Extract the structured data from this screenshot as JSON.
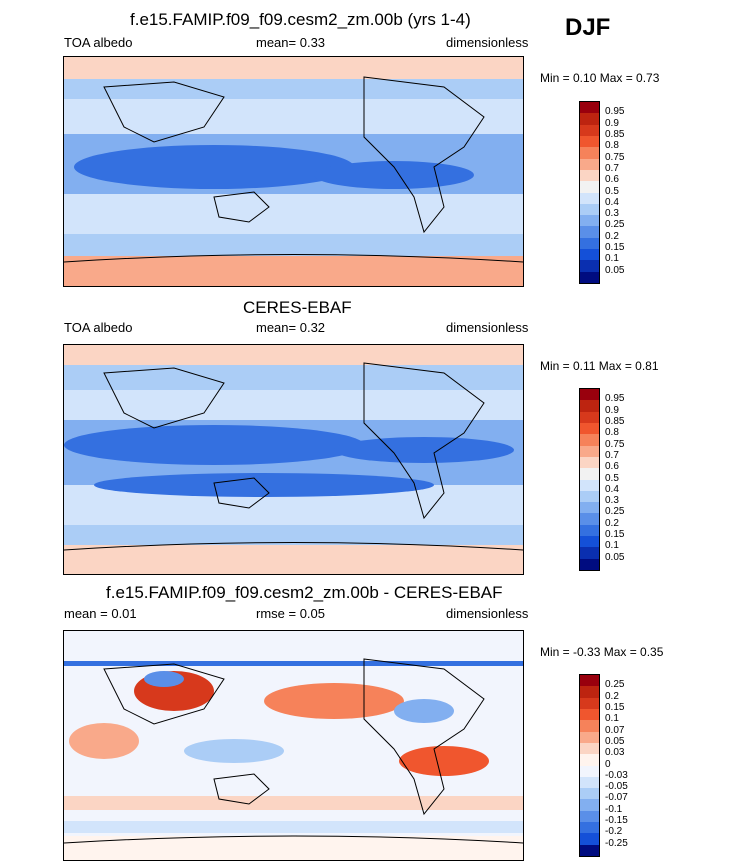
{
  "season": "DJF",
  "panels": [
    {
      "title": "f.e15.FAMIP.f09_f09.cesm2_zm.00b (yrs 1-4)",
      "left_label": "TOA albedo",
      "center_label": "mean=   0.33",
      "right_label": "dimensionless",
      "minmax": "Min =   0.10 Max =   0.73",
      "colorbar_labels": [
        "0.95",
        "0.9",
        "0.85",
        "0.8",
        "0.75",
        "0.7",
        "0.6",
        "0.5",
        "0.4",
        "0.3",
        "0.25",
        "0.2",
        "0.15",
        "0.1",
        "0.05"
      ]
    },
    {
      "title": "CERES-EBAF",
      "left_label": "TOA albedo",
      "center_label": "mean=   0.32",
      "right_label": "dimensionless",
      "minmax": "Min =   0.11 Max =   0.81",
      "colorbar_labels": [
        "0.95",
        "0.9",
        "0.85",
        "0.8",
        "0.75",
        "0.7",
        "0.6",
        "0.5",
        "0.4",
        "0.3",
        "0.25",
        "0.2",
        "0.15",
        "0.1",
        "0.05"
      ]
    },
    {
      "title": "f.e15.FAMIP.f09_f09.cesm2_zm.00b - CERES-EBAF",
      "left_label": "mean =   0.01",
      "center_label": "rmse =   0.05",
      "right_label": "dimensionless",
      "minmax": "Min =  -0.33 Max =   0.35",
      "colorbar_labels": [
        "0.25",
        "0.2",
        "0.15",
        "0.1",
        "0.07",
        "0.05",
        "0.03",
        "0",
        "-0.03",
        "-0.05",
        "-0.07",
        "-0.1",
        "-0.15",
        "-0.2",
        "-0.25"
      ]
    }
  ],
  "colors": {
    "abs_scale": [
      "#99000d",
      "#bd2410",
      "#d7391c",
      "#f0562e",
      "#f6825a",
      "#f9a98a",
      "#fbd5c4",
      "#f2f2f2",
      "#d2e4fb",
      "#abcdf6",
      "#82aff0",
      "#5a8fe8",
      "#3470e0",
      "#1450d8",
      "#0a2fb0",
      "#000c80"
    ],
    "diff_scale": [
      "#99000d",
      "#bd2410",
      "#d7391c",
      "#f0562e",
      "#f6825a",
      "#f9a98a",
      "#fbd5c4",
      "#fff4ee",
      "#f2f5fd",
      "#d2e4fb",
      "#abcdf6",
      "#82aff0",
      "#5a8fe8",
      "#3470e0",
      "#1450d8",
      "#000c80"
    ]
  },
  "chart_data": [
    {
      "type": "heatmap",
      "title": "f.e15.FAMIP.f09_f09.cesm2_zm.00b (yrs 1-4)",
      "variable": "TOA albedo",
      "units": "dimensionless",
      "mean": 0.33,
      "min": 0.1,
      "max": 0.73,
      "levels": [
        0.05,
        0.1,
        0.15,
        0.2,
        0.25,
        0.3,
        0.4,
        0.5,
        0.6,
        0.7,
        0.75,
        0.8,
        0.85,
        0.9,
        0.95
      ],
      "map": "global, Pacific-centered"
    },
    {
      "type": "heatmap",
      "title": "CERES-EBAF",
      "variable": "TOA albedo",
      "units": "dimensionless",
      "mean": 0.32,
      "min": 0.11,
      "max": 0.81,
      "levels": [
        0.05,
        0.1,
        0.15,
        0.2,
        0.25,
        0.3,
        0.4,
        0.5,
        0.6,
        0.7,
        0.75,
        0.8,
        0.85,
        0.9,
        0.95
      ],
      "map": "global, Pacific-centered"
    },
    {
      "type": "heatmap",
      "title": "f.e15.FAMIP.f09_f09.cesm2_zm.00b - CERES-EBAF",
      "units": "dimensionless",
      "mean": 0.01,
      "rmse": 0.05,
      "min": -0.33,
      "max": 0.35,
      "levels": [
        -0.25,
        -0.2,
        -0.15,
        -0.1,
        -0.07,
        -0.05,
        -0.03,
        0,
        0.03,
        0.05,
        0.07,
        0.1,
        0.15,
        0.2,
        0.25
      ],
      "map": "global, Pacific-centered"
    }
  ]
}
